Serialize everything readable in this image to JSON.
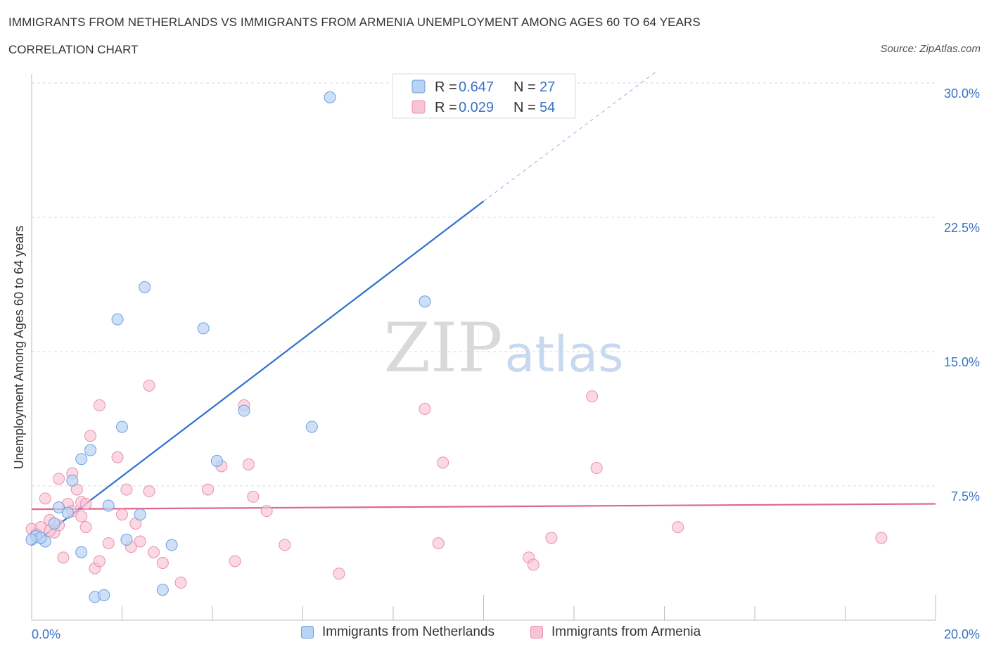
{
  "header": {
    "title": "IMMIGRANTS FROM NETHERLANDS VS IMMIGRANTS FROM ARMENIA UNEMPLOYMENT AMONG AGES 60 TO 64 YEARS",
    "subtitle": "CORRELATION CHART",
    "source": "Source: ZipAtlas.com"
  },
  "watermark": {
    "zip": "ZIP",
    "atlas": "atlas"
  },
  "colors": {
    "netherlands_fill": "#b9d3f5",
    "netherlands_stroke": "#6b9fe0",
    "netherlands_line": "#2f6fcf",
    "armenia_fill": "#f7c4d4",
    "armenia_stroke": "#eb8fae",
    "armenia_line": "#e06690",
    "tick_label": "#3a72c8",
    "grid": "#d8d8d8"
  },
  "stats_legend": [
    {
      "r_label": "R = ",
      "r_value": "0.647",
      "n_label": "N = ",
      "n_value": "27"
    },
    {
      "r_label": "R = ",
      "r_value": "0.029",
      "n_label": "N = ",
      "n_value": "54"
    }
  ],
  "chart_data": {
    "type": "scatter",
    "title": "IMMIGRANTS FROM NETHERLANDS VS IMMIGRANTS FROM ARMENIA UNEMPLOYMENT AMONG AGES 60 TO 64 YEARS",
    "subtitle": "CORRELATION CHART",
    "xlabel": "",
    "ylabel": "Unemployment Among Ages 60 to 64 years",
    "xlim": [
      0,
      20
    ],
    "ylim": [
      0,
      30
    ],
    "x_tick_labels": [
      "0.0%",
      "20.0%"
    ],
    "y_ticks": [
      7.5,
      15.0,
      22.5,
      30.0
    ],
    "y_tick_labels": [
      "7.5%",
      "15.0%",
      "22.5%",
      "30.0%"
    ],
    "grid": true,
    "legend_position": "bottom",
    "series": [
      {
        "name": "Immigrants from Netherlands",
        "R": 0.647,
        "N": 27,
        "trend": {
          "x0": 0,
          "y0": 4.2,
          "x1": 10.0,
          "y1": 23.4,
          "dashed_to_x": 13.8,
          "dashed_to_y": 30.6
        },
        "points": [
          [
            0.1,
            4.7
          ],
          [
            0.3,
            4.4
          ],
          [
            0.5,
            5.4
          ],
          [
            0.6,
            6.3
          ],
          [
            0.8,
            6.0
          ],
          [
            0.9,
            7.8
          ],
          [
            1.1,
            9.0
          ],
          [
            1.3,
            9.5
          ],
          [
            1.1,
            3.8
          ],
          [
            1.4,
            1.3
          ],
          [
            1.6,
            1.4
          ],
          [
            1.7,
            6.4
          ],
          [
            1.9,
            16.8
          ],
          [
            2.0,
            10.8
          ],
          [
            2.1,
            4.5
          ],
          [
            2.4,
            5.9
          ],
          [
            2.5,
            18.6
          ],
          [
            2.9,
            1.7
          ],
          [
            3.1,
            4.2
          ],
          [
            3.8,
            16.3
          ],
          [
            4.1,
            8.9
          ],
          [
            4.7,
            11.7
          ],
          [
            6.2,
            10.8
          ],
          [
            6.6,
            29.2
          ],
          [
            8.7,
            17.8
          ],
          [
            0.2,
            4.6
          ],
          [
            0.0,
            4.5
          ]
        ]
      },
      {
        "name": "Immigrants from Armenia",
        "R": 0.029,
        "N": 54,
        "trend": {
          "x0": 0,
          "y0": 6.2,
          "x1": 20.0,
          "y1": 6.5
        },
        "points": [
          [
            0.0,
            5.1
          ],
          [
            0.1,
            4.7
          ],
          [
            0.2,
            5.2
          ],
          [
            0.3,
            6.8
          ],
          [
            0.4,
            5.6
          ],
          [
            0.5,
            4.9
          ],
          [
            0.6,
            7.9
          ],
          [
            0.7,
            3.5
          ],
          [
            0.8,
            6.5
          ],
          [
            0.9,
            6.1
          ],
          [
            0.9,
            8.2
          ],
          [
            1.0,
            7.3
          ],
          [
            1.1,
            6.6
          ],
          [
            1.1,
            5.8
          ],
          [
            1.2,
            5.2
          ],
          [
            1.3,
            10.3
          ],
          [
            1.4,
            2.9
          ],
          [
            1.5,
            3.3
          ],
          [
            1.5,
            12.0
          ],
          [
            1.7,
            4.3
          ],
          [
            1.9,
            9.1
          ],
          [
            2.0,
            5.9
          ],
          [
            2.1,
            7.3
          ],
          [
            2.2,
            4.1
          ],
          [
            2.3,
            5.4
          ],
          [
            2.4,
            4.4
          ],
          [
            2.6,
            7.2
          ],
          [
            2.6,
            13.1
          ],
          [
            2.7,
            3.8
          ],
          [
            2.9,
            3.2
          ],
          [
            3.3,
            2.1
          ],
          [
            3.9,
            7.3
          ],
          [
            4.2,
            8.6
          ],
          [
            4.5,
            3.3
          ],
          [
            4.7,
            12.0
          ],
          [
            4.8,
            8.7
          ],
          [
            4.9,
            6.9
          ],
          [
            5.2,
            6.1
          ],
          [
            5.6,
            4.2
          ],
          [
            6.8,
            2.6
          ],
          [
            8.7,
            11.8
          ],
          [
            9.0,
            4.3
          ],
          [
            9.1,
            8.8
          ],
          [
            11.0,
            3.5
          ],
          [
            11.1,
            3.1
          ],
          [
            11.5,
            4.6
          ],
          [
            12.4,
            12.5
          ],
          [
            12.5,
            8.5
          ],
          [
            14.3,
            5.2
          ],
          [
            18.8,
            4.6
          ],
          [
            0.1,
            4.8
          ],
          [
            0.6,
            5.3
          ],
          [
            1.2,
            6.5
          ],
          [
            0.4,
            5.0
          ]
        ]
      }
    ]
  }
}
